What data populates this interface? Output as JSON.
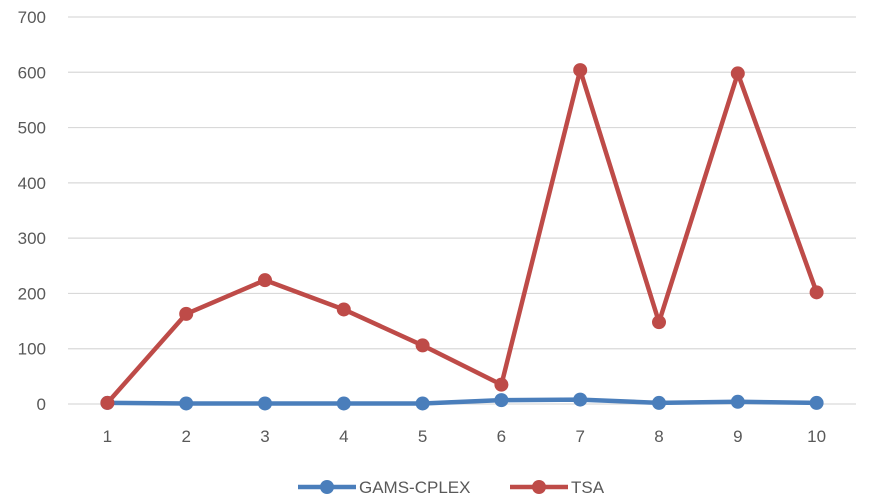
{
  "chart_data": {
    "type": "line",
    "categories": [
      "1",
      "2",
      "3",
      "4",
      "5",
      "6",
      "7",
      "8",
      "9",
      "10"
    ],
    "series": [
      {
        "name": "GAMS-CPLEX",
        "color": "#4a7ebb",
        "values": [
          2,
          1,
          1,
          1,
          1,
          7,
          8,
          2,
          4,
          2
        ]
      },
      {
        "name": "TSA",
        "color": "#be4b48",
        "values": [
          2,
          163,
          224,
          171,
          106,
          35,
          604,
          148,
          598,
          202
        ]
      }
    ],
    "yticks": [
      "0",
      "100",
      "200",
      "300",
      "400",
      "500",
      "600",
      "700"
    ],
    "ylim": [
      0,
      700
    ],
    "grid": true,
    "legend": "bottom",
    "title": "",
    "xlabel": "",
    "ylabel": ""
  }
}
